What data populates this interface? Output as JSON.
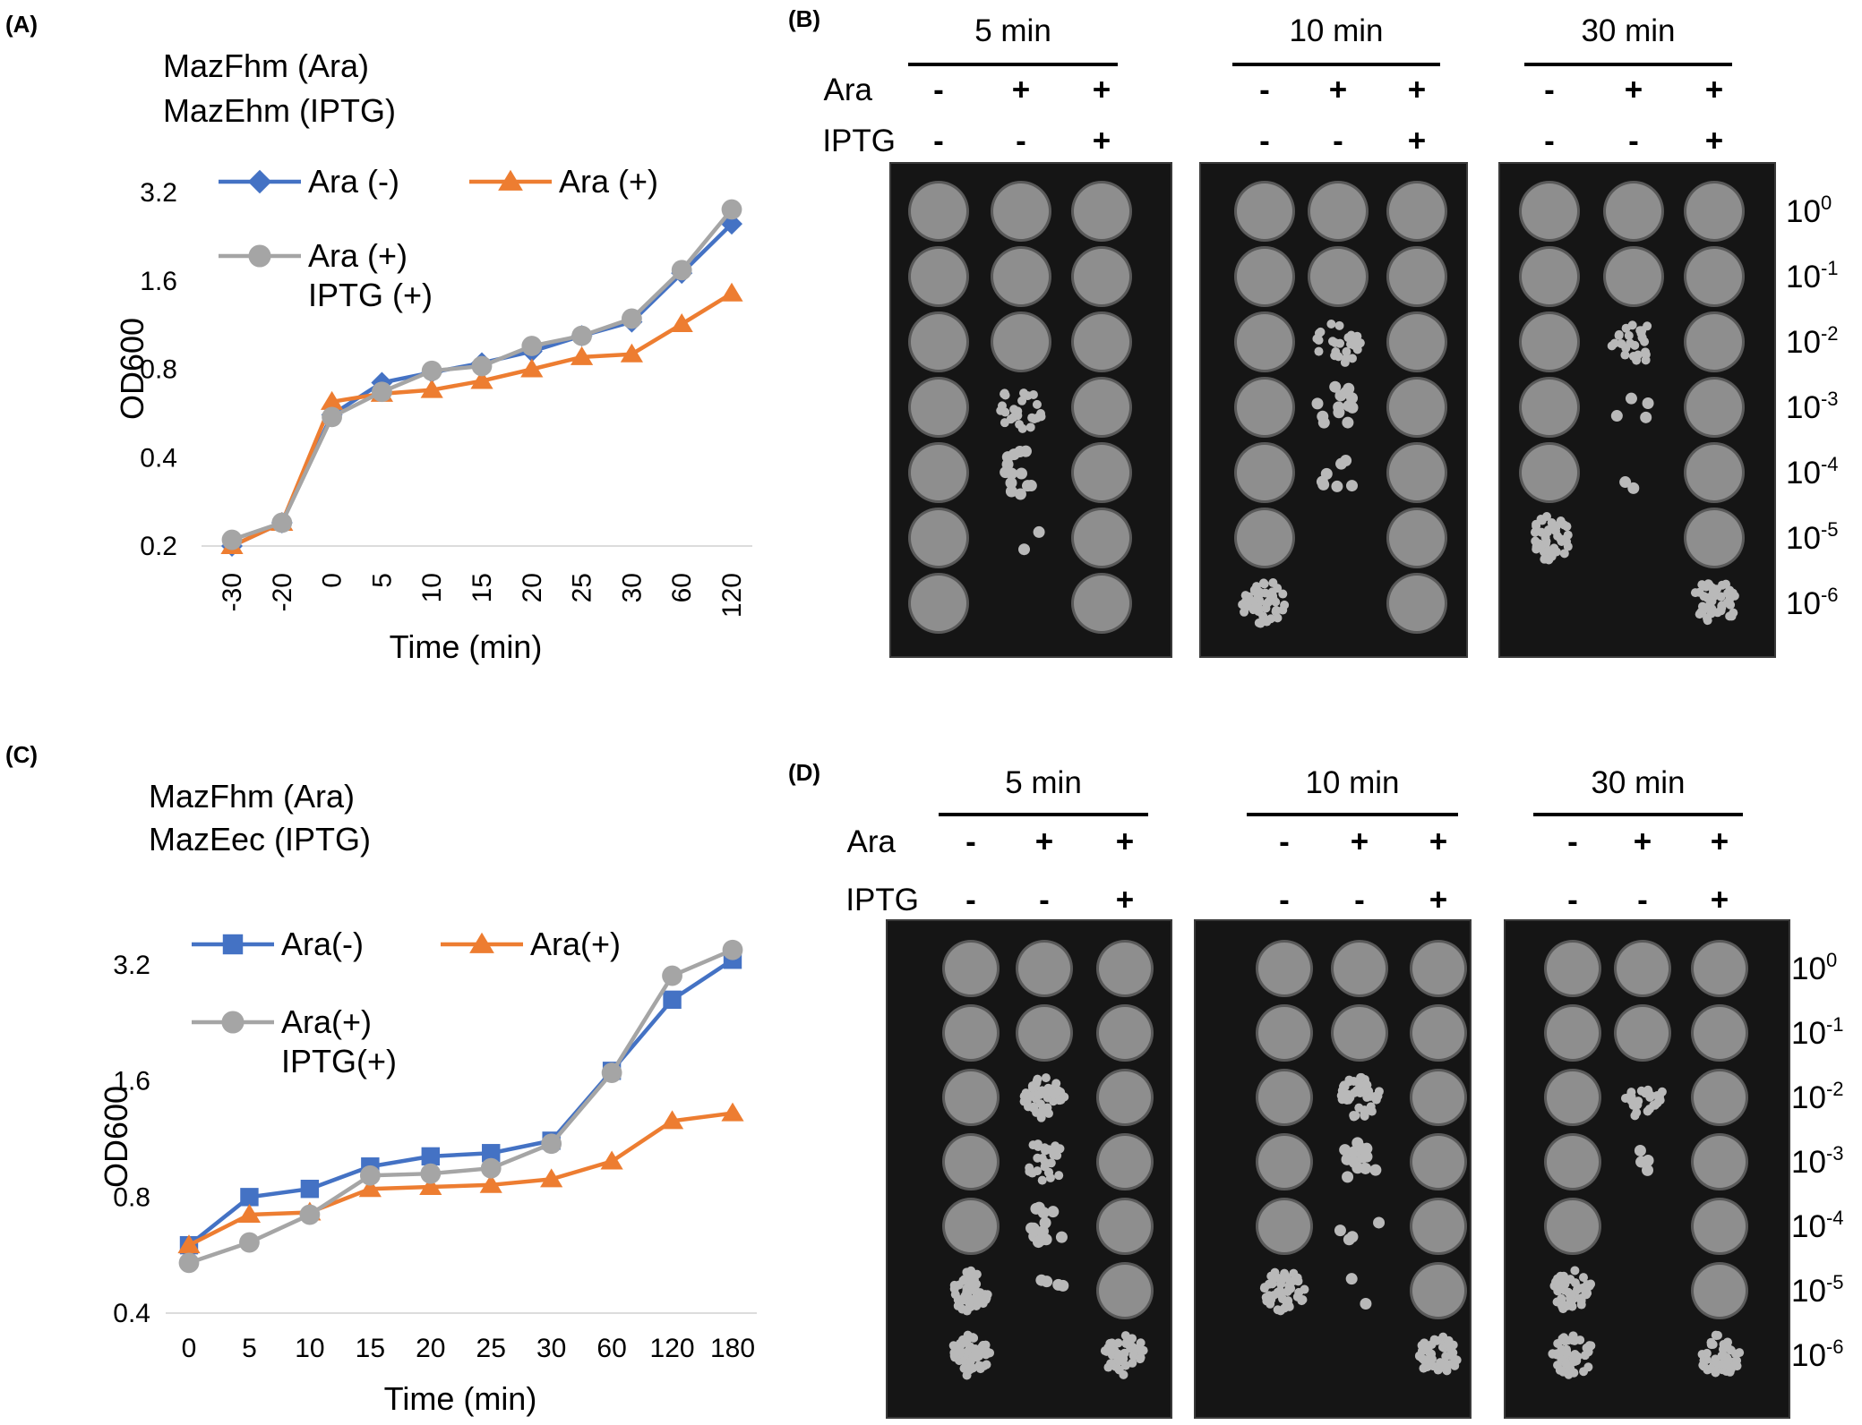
{
  "panels": {
    "A": {
      "label": "(A)",
      "annotation": [
        "MazFhm (Ara)",
        "MazEhm  (IPTG)"
      ],
      "chart_data": {
        "type": "line",
        "xlabel": "Time (min)",
        "ylabel": "OD600",
        "y_scale": "log2",
        "y_ticks": [
          0.2,
          0.4,
          0.8,
          1.6,
          3.2
        ],
        "y_tick_labels": [
          "0.2",
          "0.4",
          "0.8",
          "1.6",
          "3.2"
        ],
        "categories": [
          "-30",
          "-20",
          "0",
          "5",
          "10",
          "15",
          "20",
          "25",
          "30",
          "60",
          "120"
        ],
        "x_tick_rotation": -90,
        "legend": "top-left",
        "grid": false,
        "series": [
          {
            "name": "Ara (-)",
            "marker": "diamond",
            "color": "#4472C4",
            "values": [
              0.2,
              0.24,
              0.56,
              0.72,
              0.78,
              0.84,
              0.92,
              1.04,
              1.16,
              1.7,
              2.5
            ]
          },
          {
            "name": "Ara (+)",
            "marker": "triangle",
            "color": "#ED7D31",
            "values": [
              0.2,
              0.24,
              0.62,
              0.66,
              0.68,
              0.73,
              0.8,
              0.88,
              0.9,
              1.14,
              1.45
            ]
          },
          {
            "name": "Ara (+)",
            "name2": "IPTG (+)",
            "marker": "circle",
            "color": "#A5A5A5",
            "values": [
              0.21,
              0.24,
              0.55,
              0.67,
              0.79,
              0.82,
              0.96,
              1.04,
              1.19,
              1.74,
              2.8
            ]
          }
        ]
      }
    },
    "C": {
      "label": "(C)",
      "annotation": [
        "MazFhm (Ara)",
        "MazEec  (IPTG)"
      ],
      "chart_data": {
        "type": "line",
        "xlabel": "Time (min)",
        "ylabel": "OD600",
        "y_scale": "log2",
        "y_ticks": [
          0.4,
          0.8,
          1.6,
          3.2
        ],
        "y_tick_labels": [
          "0.4",
          "0.8",
          "1.6",
          "3.2"
        ],
        "categories": [
          "0",
          "5",
          "10",
          "15",
          "20",
          "25",
          "30",
          "60",
          "120",
          "180"
        ],
        "x_tick_rotation": 0,
        "legend": "top-left",
        "grid": false,
        "series": [
          {
            "name": "Ara(-)",
            "marker": "square",
            "color": "#4472C4",
            "values": [
              0.6,
              0.8,
              0.84,
              0.96,
              1.02,
              1.04,
              1.12,
              1.7,
              2.6,
              3.3
            ]
          },
          {
            "name": "Ara(+)",
            "marker": "triangle",
            "color": "#ED7D31",
            "values": [
              0.6,
              0.72,
              0.73,
              0.84,
              0.85,
              0.86,
              0.89,
              0.99,
              1.26,
              1.32
            ]
          },
          {
            "name": "Ara(+)",
            "name2": "IPTG(+)",
            "marker": "circle",
            "color": "#A5A5A5",
            "values": [
              0.54,
              0.61,
              0.72,
              0.91,
              0.92,
              0.95,
              1.1,
              1.68,
              3.0,
              3.5
            ]
          }
        ]
      }
    },
    "B": {
      "label": "(B)",
      "row_labels": [
        "Ara",
        "IPTG"
      ],
      "groups": [
        {
          "title": "5 min",
          "ara": [
            "-",
            "+",
            "+"
          ],
          "iptg": [
            "-",
            "-",
            "+"
          ]
        },
        {
          "title": "10 min",
          "ara": [
            "-",
            "+",
            "+"
          ],
          "iptg": [
            "-",
            "-",
            "+"
          ]
        },
        {
          "title": "30 min",
          "ara": [
            "-",
            "+",
            "+"
          ],
          "iptg": [
            "-",
            "-",
            "+"
          ]
        }
      ],
      "dilution_base": "10",
      "dilution_exponents": [
        "0",
        "-1",
        "-2",
        "-3",
        "-4",
        "-5",
        "-6"
      ],
      "growth_levels": [
        [
          7,
          7,
          7,
          7,
          7,
          7,
          7
        ],
        [
          7,
          7,
          7,
          5,
          4,
          1,
          0
        ],
        [
          7,
          7,
          7,
          7,
          7,
          7,
          7
        ],
        [
          7,
          7,
          7,
          7,
          7,
          7,
          6
        ],
        [
          7,
          7,
          5,
          4,
          3,
          0,
          0
        ],
        [
          7,
          7,
          7,
          7,
          7,
          7,
          7
        ],
        [
          7,
          7,
          7,
          7,
          7,
          6,
          0
        ],
        [
          7,
          7,
          5,
          2,
          1,
          0,
          0
        ],
        [
          7,
          7,
          7,
          7,
          7,
          7,
          6
        ]
      ]
    },
    "D": {
      "label": "(D)",
      "row_labels": [
        "Ara",
        "IPTG"
      ],
      "groups": [
        {
          "title": "5 min",
          "ara": [
            "-",
            "+",
            "+"
          ],
          "iptg": [
            "-",
            "-",
            "+"
          ]
        },
        {
          "title": "10 min",
          "ara": [
            "-",
            "+",
            "+"
          ],
          "iptg": [
            "-",
            "-",
            "+"
          ]
        },
        {
          "title": "30 min",
          "ara": [
            "-",
            "+",
            "+"
          ],
          "iptg": [
            "-",
            "-",
            "+"
          ]
        }
      ],
      "dilution_base": "10",
      "dilution_exponents": [
        "0",
        "-1",
        "-2",
        "-3",
        "-4",
        "-5",
        "-6"
      ],
      "growth_levels": [
        [
          7,
          7,
          7,
          7,
          7,
          6,
          6
        ],
        [
          7,
          7,
          6,
          5,
          4,
          2,
          0
        ],
        [
          7,
          7,
          7,
          7,
          7,
          7,
          6
        ],
        [
          7,
          7,
          7,
          7,
          7,
          6,
          0
        ],
        [
          7,
          7,
          6,
          4,
          2,
          1,
          0
        ],
        [
          7,
          7,
          7,
          7,
          7,
          7,
          6
        ],
        [
          7,
          7,
          7,
          7,
          7,
          6,
          6
        ],
        [
          7,
          7,
          5,
          2,
          0,
          0,
          0
        ],
        [
          7,
          7,
          7,
          7,
          7,
          7,
          6
        ]
      ]
    }
  }
}
